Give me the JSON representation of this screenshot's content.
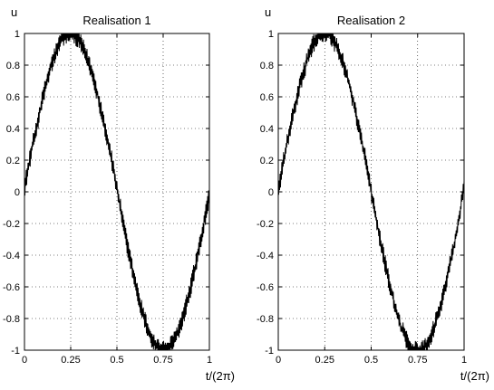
{
  "chart_data": [
    {
      "type": "line",
      "title": "Realisation 1",
      "ylabel": "u",
      "xlabel": "t/(2π)",
      "xlim": [
        0,
        1
      ],
      "ylim": [
        -1,
        1
      ],
      "x_ticks": [
        "0",
        "0.25",
        "0.5",
        "0.75",
        "1"
      ],
      "y_ticks": [
        "1",
        "0.8",
        "0.6",
        "0.4",
        "0.2",
        "0",
        "-0.2",
        "-0.4",
        "-0.6",
        "-0.8",
        "-1"
      ],
      "grid": true,
      "color": "#000000",
      "series": [
        {
          "x": [
            0,
            0.02,
            0.04,
            0.06,
            0.08,
            0.1,
            0.12,
            0.14,
            0.16,
            0.18,
            0.2,
            0.22,
            0.25,
            0.28,
            0.3,
            0.32,
            0.34,
            0.36,
            0.38,
            0.4,
            0.42,
            0.44,
            0.46,
            0.48,
            0.5,
            0.52,
            0.54,
            0.56,
            0.58,
            0.6,
            0.62,
            0.64,
            0.66,
            0.68,
            0.7,
            0.72,
            0.75,
            0.78,
            0.8,
            0.82,
            0.84,
            0.86,
            0.88,
            0.9,
            0.92,
            0.94,
            0.96,
            0.98,
            1.0
          ],
          "values": [
            0.02,
            0.15,
            0.27,
            0.38,
            0.49,
            0.6,
            0.69,
            0.78,
            0.85,
            0.91,
            0.96,
            0.99,
            1.0,
            0.98,
            0.95,
            0.9,
            0.84,
            0.77,
            0.69,
            0.59,
            0.49,
            0.38,
            0.27,
            0.15,
            0.02,
            -0.11,
            -0.24,
            -0.36,
            -0.47,
            -0.58,
            -0.68,
            -0.77,
            -0.84,
            -0.91,
            -0.95,
            -0.98,
            -1.0,
            -0.98,
            -0.96,
            -0.91,
            -0.85,
            -0.78,
            -0.69,
            -0.6,
            -0.49,
            -0.38,
            -0.27,
            -0.14,
            -0.02
          ]
        }
      ]
    },
    {
      "type": "line",
      "title": "Realisation 2",
      "ylabel": "u",
      "xlabel": "t/(2π)",
      "xlim": [
        0,
        1
      ],
      "ylim": [
        -1,
        1
      ],
      "x_ticks": [
        "0",
        "0.25",
        "0.5",
        "0.75",
        "1"
      ],
      "y_ticks": [
        "1",
        "0.8",
        "0.6",
        "0.4",
        "0.2",
        "0",
        "-0.2",
        "-0.4",
        "-0.6",
        "-0.8",
        "-1"
      ],
      "grid": true,
      "color": "#000000",
      "series": [
        {
          "x": [
            0,
            0.02,
            0.04,
            0.06,
            0.08,
            0.1,
            0.12,
            0.14,
            0.16,
            0.18,
            0.2,
            0.22,
            0.25,
            0.28,
            0.3,
            0.32,
            0.34,
            0.36,
            0.38,
            0.4,
            0.42,
            0.44,
            0.46,
            0.48,
            0.5,
            0.52,
            0.54,
            0.56,
            0.58,
            0.6,
            0.62,
            0.64,
            0.66,
            0.68,
            0.7,
            0.72,
            0.75,
            0.78,
            0.8,
            0.82,
            0.84,
            0.86,
            0.88,
            0.9,
            0.92,
            0.94,
            0.96,
            0.98,
            1.0
          ],
          "values": [
            0.0,
            0.14,
            0.26,
            0.38,
            0.49,
            0.59,
            0.69,
            0.77,
            0.85,
            0.91,
            0.96,
            0.99,
            1.0,
            0.99,
            0.95,
            0.91,
            0.85,
            0.77,
            0.69,
            0.59,
            0.48,
            0.37,
            0.26,
            0.14,
            0.0,
            -0.13,
            -0.25,
            -0.37,
            -0.48,
            -0.59,
            -0.68,
            -0.77,
            -0.85,
            -0.91,
            -0.96,
            -0.99,
            -1.0,
            -0.99,
            -0.96,
            -0.91,
            -0.85,
            -0.77,
            -0.69,
            -0.59,
            -0.48,
            -0.37,
            -0.25,
            -0.12,
            0.05
          ]
        }
      ]
    }
  ]
}
